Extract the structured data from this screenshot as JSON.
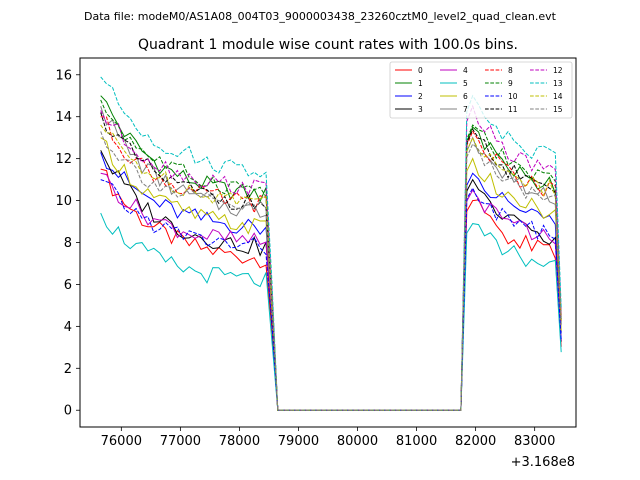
{
  "header": "Data file: modeM0/AS1A08_004T03_9000003438_23260cztM0_level2_quad_clean.evt",
  "chart_data": {
    "type": "line",
    "title": "Quadrant 1 module wise count rates with 100.0s bins.",
    "xlabel": "",
    "ylabel": "",
    "x_offset_label": "+3.168e8",
    "xlim": [
      75300,
      83700
    ],
    "ylim": [
      -0.8,
      16.8
    ],
    "x_ticks": [
      76000,
      77000,
      78000,
      79000,
      80000,
      81000,
      82000,
      83000
    ],
    "x_tick_labels": [
      "76000",
      "77000",
      "78000",
      "79000",
      "80000",
      "81000",
      "82000",
      "83000"
    ],
    "y_ticks": [
      0,
      2,
      4,
      6,
      8,
      10,
      12,
      14,
      16
    ],
    "y_tick_labels": [
      "0",
      "2",
      "4",
      "6",
      "8",
      "10",
      "12",
      "14",
      "16"
    ],
    "x_start": 75650,
    "x_end": 83400,
    "bin_width": 100,
    "legend_position": "top-right",
    "series": [
      {
        "name": "0",
        "color": "#ff0000",
        "dash": "solid",
        "start": 11.5,
        "end1": 7.0,
        "start2": 10.0,
        "end2": 7.2
      },
      {
        "name": "1",
        "color": "#008000",
        "dash": "solid",
        "start": 15.0,
        "end1": 10.0,
        "start2": 13.5,
        "end2": 10.3
      },
      {
        "name": "2",
        "color": "#0000ff",
        "dash": "solid",
        "start": 12.3,
        "end1": 8.5,
        "start2": 11.3,
        "end2": 8.8
      },
      {
        "name": "3",
        "color": "#000000",
        "dash": "solid",
        "start": 12.4,
        "end1": 7.5,
        "start2": 11.0,
        "end2": 7.8
      },
      {
        "name": "4",
        "color": "#bf00bf",
        "dash": "solid",
        "start": 11.3,
        "end1": 7.8,
        "start2": 10.5,
        "end2": 7.9
      },
      {
        "name": "5",
        "color": "#00bfbf",
        "dash": "solid",
        "start": 9.4,
        "end1": 6.0,
        "start2": 8.9,
        "end2": 6.6
      },
      {
        "name": "6",
        "color": "#bfbf00",
        "dash": "solid",
        "start": 13.0,
        "end1": 8.5,
        "start2": 12.0,
        "end2": 9.0
      },
      {
        "name": "7",
        "color": "#808080",
        "dash": "solid",
        "start": 14.5,
        "end1": 9.2,
        "start2": 13.0,
        "end2": 9.7
      },
      {
        "name": "8",
        "color": "#ff0000",
        "dash": "dashed",
        "start": 14.0,
        "end1": 9.6,
        "start2": 13.3,
        "end2": 10.0
      },
      {
        "name": "9",
        "color": "#008000",
        "dash": "dashed",
        "start": 14.8,
        "end1": 10.3,
        "start2": 13.6,
        "end2": 10.6
      },
      {
        "name": "10",
        "color": "#0000ff",
        "dash": "dashed",
        "start": 11.0,
        "end1": 7.6,
        "start2": 10.6,
        "end2": 8.0
      },
      {
        "name": "11",
        "color": "#000000",
        "dash": "dashed",
        "start": 14.2,
        "end1": 9.6,
        "start2": 13.4,
        "end2": 10.1
      },
      {
        "name": "12",
        "color": "#bf00bf",
        "dash": "dashed",
        "start": 14.3,
        "end1": 10.4,
        "start2": 14.5,
        "end2": 10.8
      },
      {
        "name": "13",
        "color": "#00bfbf",
        "dash": "dashed",
        "start": 15.9,
        "end1": 11.2,
        "start2": 15.0,
        "end2": 11.6
      },
      {
        "name": "14",
        "color": "#bfbf00",
        "dash": "dashed",
        "start": 13.6,
        "end1": 9.8,
        "start2": 13.0,
        "end2": 10.1
      },
      {
        "name": "15",
        "color": "#808080",
        "dash": "dashed",
        "start": 13.3,
        "end1": 9.4,
        "start2": 12.7,
        "end2": 9.7
      }
    ],
    "segments": {
      "active1": [
        75650,
        78450
      ],
      "fall_to_zero": [
        78450,
        78650
      ],
      "zero": [
        78650,
        81750
      ],
      "rise": [
        81750,
        81950
      ],
      "active2": [
        81950,
        83400
      ],
      "last_value_fraction": 0.42
    }
  }
}
